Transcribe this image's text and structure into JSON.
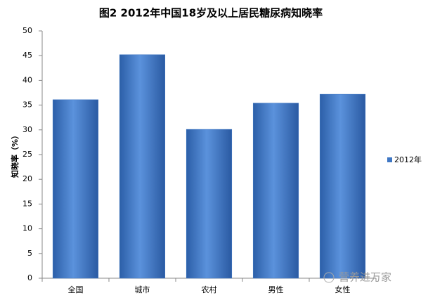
{
  "chart_data": {
    "type": "bar",
    "title": "图2  2012年中国18岁及以上居民糖尿病知晓率",
    "y_label": "知晓率（%）",
    "categories": [
      "全国",
      "城市",
      "农村",
      "男性",
      "女性"
    ],
    "series": [
      {
        "name": "2012年",
        "color": "#3f77c4",
        "values": [
          36.1,
          45.2,
          30.1,
          35.4,
          37.2
        ]
      }
    ],
    "ylim": [
      0,
      50
    ],
    "yticks": [
      0,
      5,
      10,
      15,
      20,
      25,
      30,
      35,
      40,
      45,
      50
    ],
    "grid": false,
    "legend": "right",
    "watermark": "营养进万家"
  }
}
